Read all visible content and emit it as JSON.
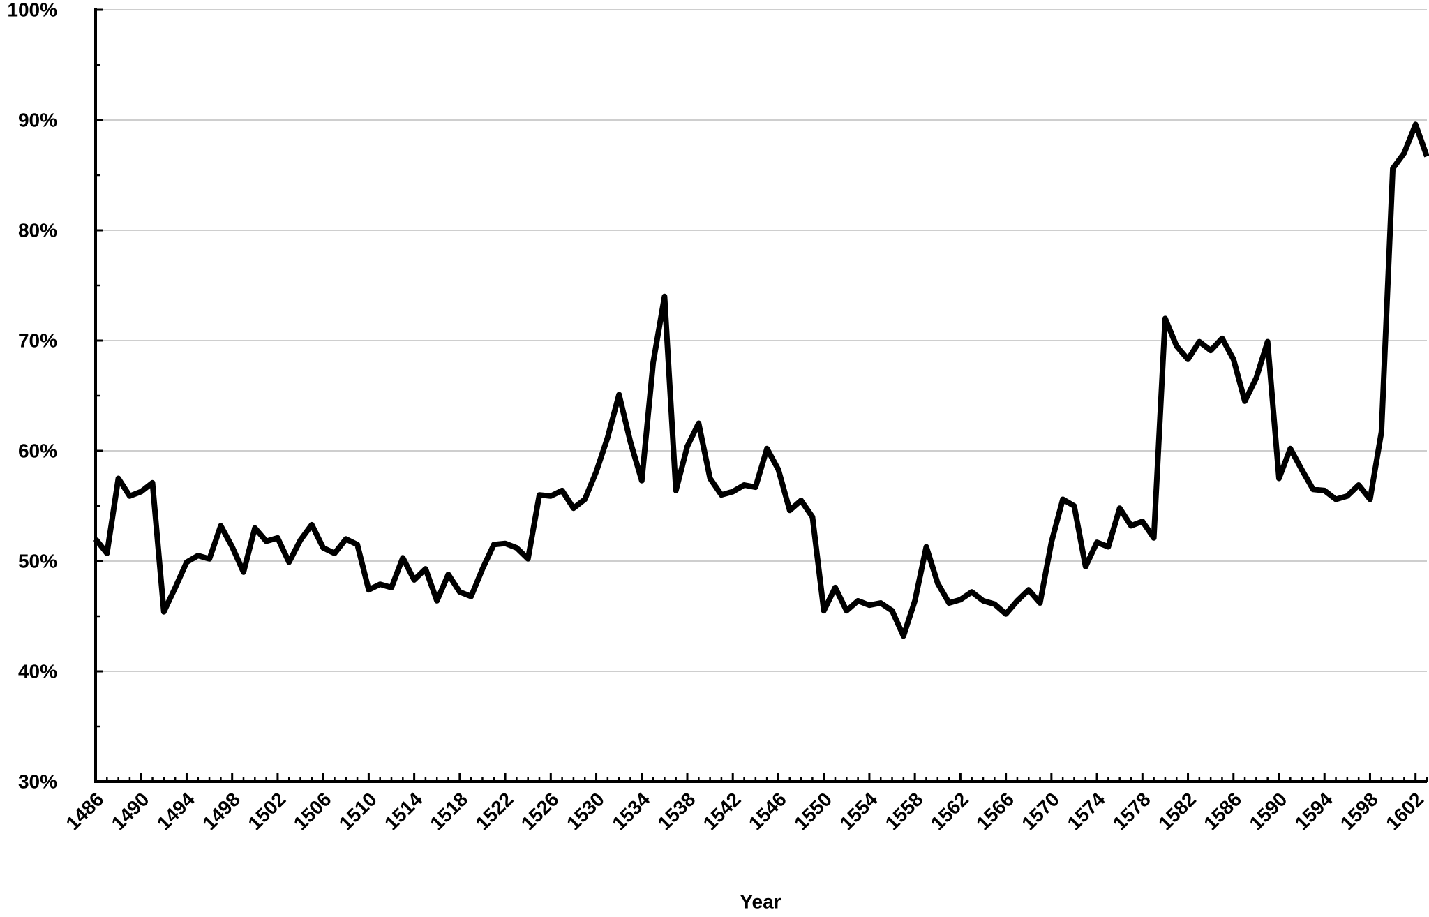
{
  "chart_data": {
    "type": "line",
    "xlabel": "Year",
    "x": [
      1486,
      1487,
      1488,
      1489,
      1490,
      1491,
      1492,
      1493,
      1494,
      1495,
      1496,
      1497,
      1498,
      1499,
      1500,
      1501,
      1502,
      1503,
      1504,
      1505,
      1506,
      1507,
      1508,
      1509,
      1510,
      1511,
      1512,
      1513,
      1514,
      1515,
      1516,
      1517,
      1518,
      1519,
      1520,
      1521,
      1522,
      1523,
      1524,
      1525,
      1526,
      1527,
      1528,
      1529,
      1530,
      1531,
      1532,
      1533,
      1534,
      1535,
      1536,
      1537,
      1538,
      1539,
      1540,
      1541,
      1542,
      1543,
      1544,
      1545,
      1546,
      1547,
      1548,
      1549,
      1550,
      1551,
      1552,
      1553,
      1554,
      1555,
      1556,
      1557,
      1558,
      1559,
      1560,
      1561,
      1562,
      1563,
      1564,
      1565,
      1566,
      1567,
      1568,
      1569,
      1570,
      1571,
      1572,
      1573,
      1574,
      1575,
      1576,
      1577,
      1578,
      1579,
      1580,
      1581,
      1582,
      1583,
      1584,
      1585,
      1586,
      1587,
      1588,
      1589,
      1590,
      1591,
      1592,
      1593,
      1594,
      1595,
      1596,
      1597,
      1598,
      1599,
      1600,
      1601,
      1602,
      1603
    ],
    "values": [
      52.0,
      50.7,
      57.5,
      55.9,
      56.3,
      57.1,
      45.4,
      47.6,
      49.9,
      50.5,
      50.2,
      53.2,
      51.3,
      49.0,
      53.0,
      51.8,
      52.1,
      49.9,
      51.9,
      53.3,
      51.2,
      50.7,
      52.0,
      51.5,
      47.4,
      47.9,
      47.6,
      50.3,
      48.3,
      49.3,
      46.4,
      48.8,
      47.2,
      46.8,
      49.3,
      51.5,
      51.6,
      51.2,
      50.2,
      56.0,
      55.9,
      56.4,
      54.8,
      55.6,
      58.1,
      61.2,
      65.1,
      60.8,
      57.3,
      68.0,
      74.0,
      56.4,
      60.4,
      62.5,
      57.5,
      56.0,
      56.3,
      56.9,
      56.7,
      60.2,
      58.3,
      54.6,
      55.5,
      54.0,
      45.5,
      47.6,
      45.5,
      46.4,
      46.0,
      46.2,
      45.5,
      43.2,
      46.4,
      51.3,
      48.0,
      46.2,
      46.5,
      47.2,
      46.4,
      46.1,
      45.2,
      46.4,
      47.4,
      46.2,
      51.7,
      55.6,
      55.0,
      49.5,
      51.7,
      51.3,
      54.8,
      53.2,
      53.6,
      52.1,
      72.0,
      69.5,
      68.3,
      69.9,
      69.1,
      70.2,
      68.3,
      64.5,
      66.6,
      69.9,
      57.5,
      60.2,
      58.3,
      56.5,
      56.4,
      55.6,
      55.9,
      56.9,
      55.6,
      61.7,
      85.6,
      87.0,
      89.6,
      86.7
    ],
    "color": "#000000",
    "xlim": [
      1486,
      1603
    ],
    "xticks": [
      1486,
      1490,
      1494,
      1498,
      1502,
      1506,
      1510,
      1514,
      1518,
      1522,
      1526,
      1530,
      1534,
      1538,
      1542,
      1546,
      1550,
      1554,
      1558,
      1562,
      1566,
      1570,
      1574,
      1578,
      1582,
      1586,
      1590,
      1594,
      1598,
      1602
    ],
    "ylim": [
      30,
      100
    ],
    "yticks": [
      {
        "value": 30,
        "label": "30%"
      },
      {
        "value": 40,
        "label": "40%"
      },
      {
        "value": 50,
        "label": "50%"
      },
      {
        "value": 60,
        "label": "60%"
      },
      {
        "value": 70,
        "label": "70%"
      },
      {
        "value": 80,
        "label": "80%"
      },
      {
        "value": 90,
        "label": "90%"
      },
      {
        "value": 100,
        "label": "100%"
      }
    ],
    "grid": true
  }
}
